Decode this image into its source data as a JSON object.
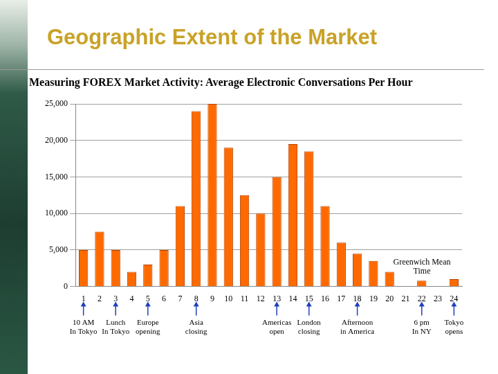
{
  "header": {
    "title": "Geographic Extent of the Market"
  },
  "chart_data": {
    "type": "bar",
    "title": "Measuring FOREX Market Activity: Average Electronic Conversations Per Hour",
    "xlabel": [
      "Greenwich Mean",
      "Time"
    ],
    "categories": [
      1,
      2,
      3,
      4,
      5,
      6,
      7,
      8,
      9,
      10,
      11,
      12,
      13,
      14,
      15,
      16,
      17,
      18,
      19,
      20,
      21,
      22,
      23,
      24
    ],
    "values": [
      5000,
      7500,
      5000,
      2000,
      3000,
      5000,
      11000,
      24000,
      25000,
      19000,
      12500,
      10000,
      15000,
      19500,
      18500,
      11000,
      6000,
      4500,
      3500,
      2000,
      0,
      800,
      0,
      1000
    ],
    "color": "#ff6a00",
    "ylim": [
      0,
      25000
    ],
    "yticks": [
      0,
      {
        "value": 5000,
        "label": "5,000"
      },
      {
        "value": 10000,
        "label": "10,000"
      },
      {
        "value": 15000,
        "label": "15,000"
      },
      {
        "value": 20000,
        "label": "20,000"
      },
      {
        "value": 25000,
        "label": "25,000"
      }
    ],
    "grid": true,
    "annotations": [
      {
        "at": 1,
        "lines": [
          "10 AM",
          "In Tokyo"
        ]
      },
      {
        "at": 3,
        "lines": [
          "Lunch",
          "In Tokyo"
        ]
      },
      {
        "at": 5,
        "lines": [
          "Europe",
          "opening"
        ]
      },
      {
        "at": 8,
        "lines": [
          "Asia",
          "closing"
        ]
      },
      {
        "at": 13,
        "lines": [
          "Americas",
          "open"
        ]
      },
      {
        "at": 15,
        "lines": [
          "London",
          "closing"
        ]
      },
      {
        "at": 18,
        "lines": [
          "Afternoon",
          "in America"
        ]
      },
      {
        "at": 22,
        "lines": [
          "6 pm",
          "In NY"
        ]
      },
      {
        "at": 24,
        "lines": [
          "Tokyo",
          "opens"
        ]
      }
    ]
  }
}
